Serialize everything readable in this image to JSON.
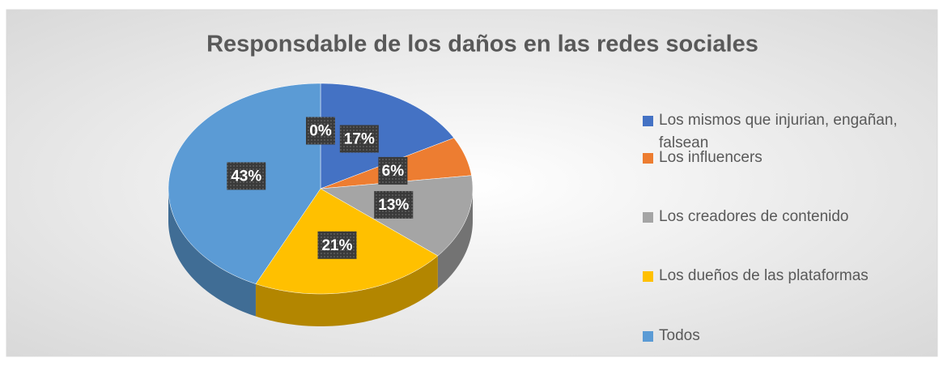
{
  "chart_data": {
    "type": "pie",
    "title": "Responsdable de los daños en las redes sociales",
    "categories": [
      null,
      "Los mismos que injurian, engañan, falsean",
      "Los influencers",
      "Los creadores de contenido",
      "Los dueños de las plataformas",
      "Todos"
    ],
    "values": [
      0,
      17,
      6,
      13,
      21,
      43
    ],
    "value_labels": [
      "0%",
      "17%",
      "6%",
      "13%",
      "21%",
      "43%"
    ],
    "colors": [
      null,
      "#4472c4",
      "#ed7d31",
      "#a5a5a5",
      "#ffc000",
      "#5b9bd5"
    ],
    "legend": "right"
  }
}
